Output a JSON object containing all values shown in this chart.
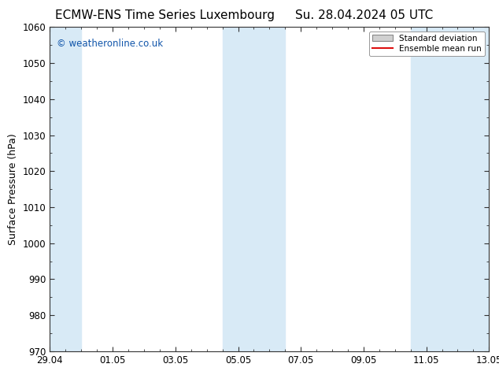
{
  "title_left": "ECMW-ENS Time Series Luxembourg",
  "title_right": "Su. 28.04.2024 05 UTC",
  "ylabel": "Surface Pressure (hPa)",
  "ylim": [
    970,
    1060
  ],
  "yticks": [
    970,
    980,
    990,
    1000,
    1010,
    1020,
    1030,
    1040,
    1050,
    1060
  ],
  "xlim": [
    0,
    14
  ],
  "x_tick_labels": [
    "29.04",
    "01.05",
    "03.05",
    "05.05",
    "07.05",
    "09.05",
    "11.05",
    "13.05"
  ],
  "x_tick_positions": [
    0,
    2,
    4,
    6,
    8,
    10,
    12,
    14
  ],
  "shaded_bands": [
    {
      "x_start": -0.1,
      "x_end": 1.0,
      "color": "#d8eaf6"
    },
    {
      "x_start": 5.5,
      "x_end": 7.5,
      "color": "#d8eaf6"
    },
    {
      "x_start": 11.5,
      "x_end": 14.1,
      "color": "#d8eaf6"
    }
  ],
  "watermark_text": "© weatheronline.co.uk",
  "watermark_color": "#1055aa",
  "legend_std_label": "Standard deviation",
  "legend_mean_label": "Ensemble mean run",
  "legend_std_facecolor": "#d0d0d0",
  "legend_std_edgecolor": "#888888",
  "legend_mean_color": "#dd1111",
  "bg_color": "#ffffff",
  "plot_bg_color": "#ffffff",
  "title_fontsize": 11,
  "tick_label_fontsize": 8.5,
  "ylabel_fontsize": 9,
  "axis_color": "#333333",
  "tick_color": "#333333",
  "minor_tick_count": 3
}
